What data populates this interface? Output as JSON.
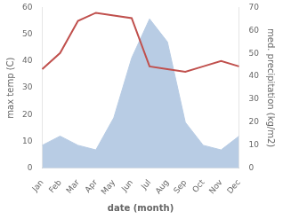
{
  "chart_data": {
    "type": "line",
    "categories": [
      "Jan",
      "Feb",
      "Mar",
      "Apr",
      "May",
      "Jun",
      "Jul",
      "Aug",
      "Sep",
      "Oct",
      "Nov",
      "Dec"
    ],
    "xlabel": "date (month)",
    "ylabel": "max temp (C)",
    "y2label": "med. precipitation (kg/m2)",
    "series": [
      {
        "type": "line",
        "color": "#c0504d",
        "values": [
          37,
          43,
          55,
          58,
          57,
          56,
          38,
          37,
          36,
          38,
          40,
          38
        ]
      },
      {
        "type": "area",
        "color": "#b8cce4",
        "axis": "y2",
        "values": [
          10,
          14,
          10,
          8,
          22,
          48,
          65,
          55,
          20,
          10,
          8,
          14
        ]
      }
    ],
    "ylim": [
      0,
      60
    ],
    "yticks": [
      0,
      10,
      20,
      30,
      40,
      50,
      60
    ],
    "y2lim": [
      0,
      70
    ],
    "y2ticks": [
      0,
      10,
      20,
      30,
      40,
      50,
      60,
      70
    ],
    "grid": false
  }
}
